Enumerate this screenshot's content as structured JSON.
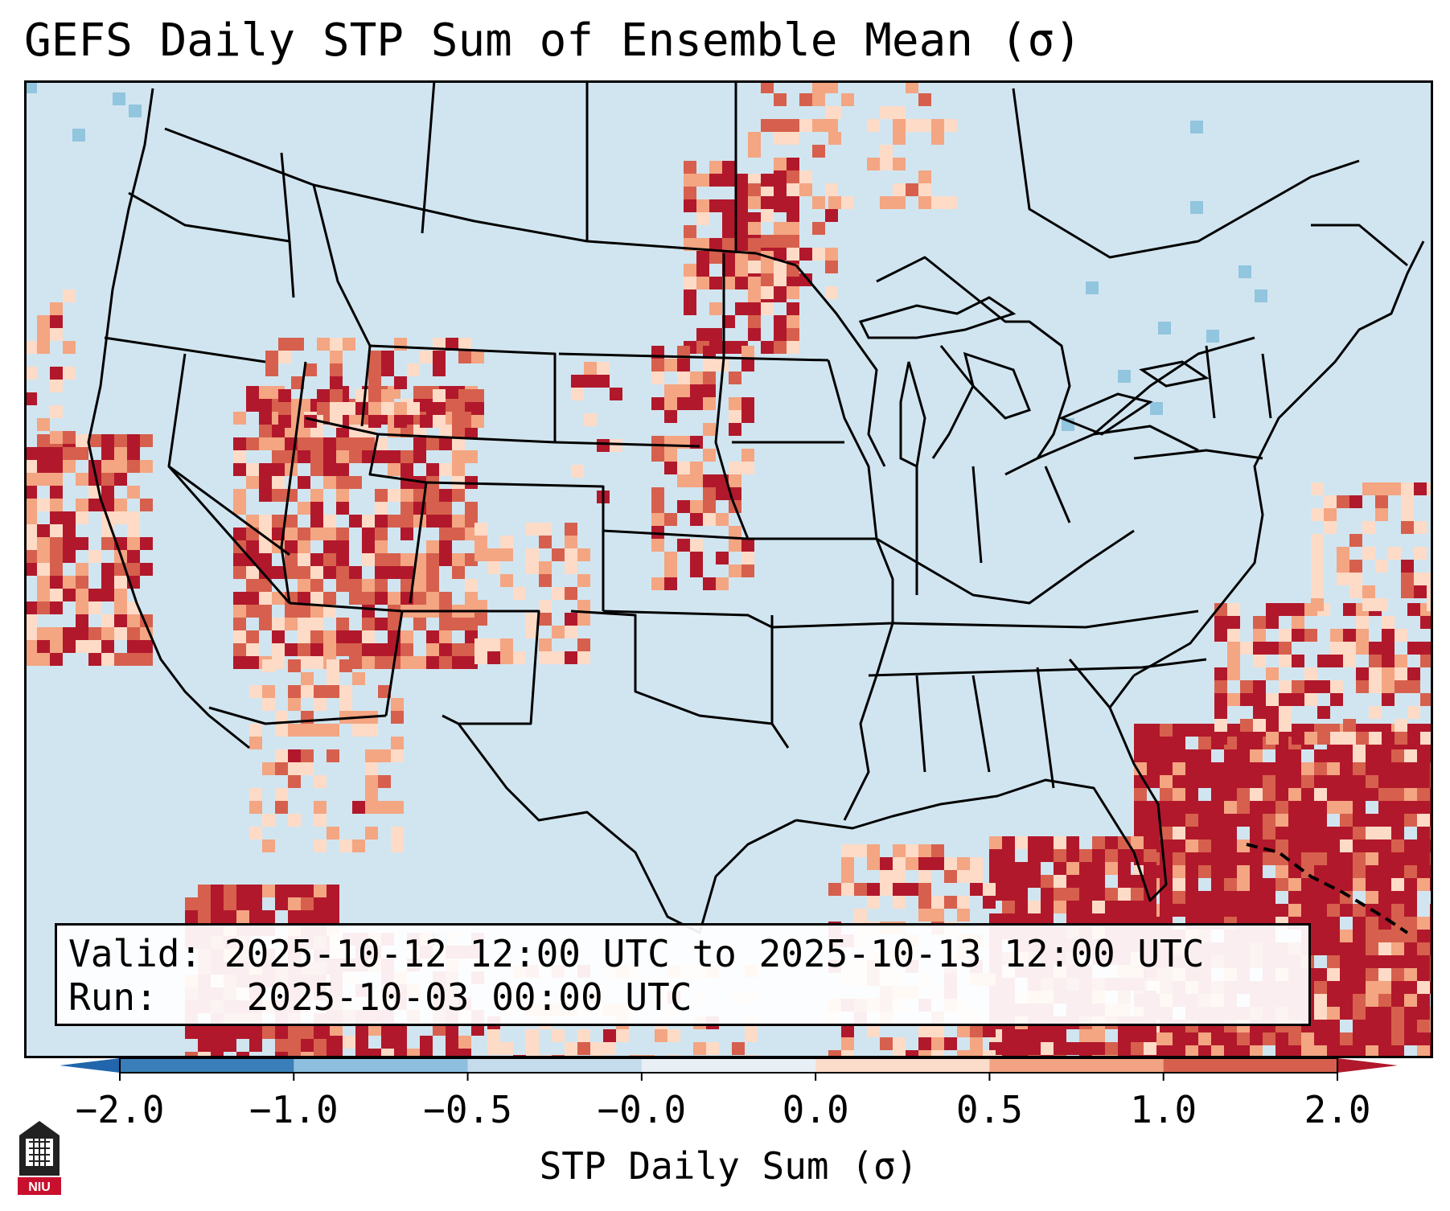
{
  "title": "GEFS Daily STP Sum of Ensemble Mean (σ)",
  "info": {
    "valid_label": "Valid:",
    "valid_value": "2025-10-12 12:00 UTC to 2025-10-13 12:00 UTC",
    "run_label": "Run:",
    "run_value": "2025-10-03 00:00 UTC"
  },
  "colorbar": {
    "label": "STP Daily Sum (σ)",
    "ticks": [
      "−2.0",
      "−1.0",
      "−0.5",
      "−0.0",
      "0.0",
      "0.5",
      "1.0",
      "2.0"
    ],
    "bins": [
      {
        "color": "#3a7fb9"
      },
      {
        "color": "#8fbfdf"
      },
      {
        "color": "#c4dcec"
      },
      {
        "color": "#e8f0f6"
      },
      {
        "color": "#fbdccb"
      },
      {
        "color": "#f2a383"
      },
      {
        "color": "#d6604d"
      }
    ],
    "under_color": "#2166ac",
    "over_color": "#b2182b"
  },
  "colors": {
    "ocean": "#d1e5f0",
    "land": "#d1e5f0",
    "max_red": "#b2182b",
    "red": "#d6604d",
    "salmon": "#f4a582",
    "peach": "#fddbc7",
    "blue": "#92c5de"
  },
  "logo": {
    "text": "NIU"
  }
}
